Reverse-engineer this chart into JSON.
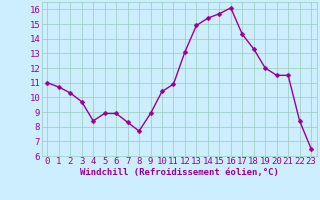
{
  "x": [
    0,
    1,
    2,
    3,
    4,
    5,
    6,
    7,
    8,
    9,
    10,
    11,
    12,
    13,
    14,
    15,
    16,
    17,
    18,
    19,
    20,
    21,
    22,
    23
  ],
  "y": [
    11.0,
    10.7,
    10.3,
    9.7,
    8.4,
    8.9,
    8.9,
    8.3,
    7.7,
    8.9,
    10.4,
    10.9,
    13.1,
    14.9,
    15.4,
    15.7,
    16.1,
    14.3,
    13.3,
    12.0,
    11.5,
    11.5,
    8.4,
    6.5
  ],
  "line_color": "#990099",
  "marker_color": "#990099",
  "bg_color": "#cceeff",
  "grid_color": "#99ccbb",
  "xlabel": "Windchill (Refroidissement éolien,°C)",
  "xlim": [
    -0.5,
    23.5
  ],
  "ylim": [
    6,
    16.5
  ],
  "yticks": [
    6,
    7,
    8,
    9,
    10,
    11,
    12,
    13,
    14,
    15,
    16
  ],
  "xticks": [
    0,
    1,
    2,
    3,
    4,
    5,
    6,
    7,
    8,
    9,
    10,
    11,
    12,
    13,
    14,
    15,
    16,
    17,
    18,
    19,
    20,
    21,
    22,
    23
  ],
  "xlabel_fontsize": 6.5,
  "tick_fontsize": 6.5,
  "marker_size": 2.5,
  "line_width": 1.0
}
